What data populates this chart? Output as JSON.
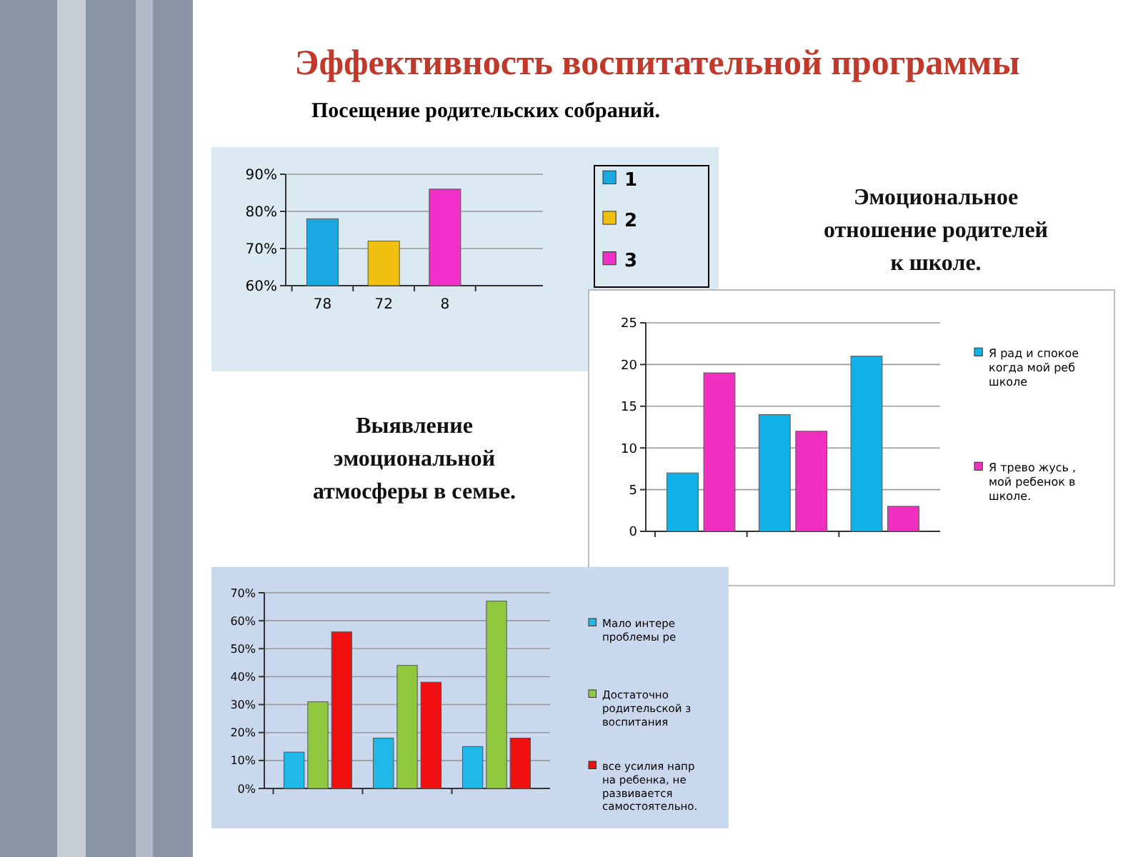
{
  "chart_data": [
    {
      "type": "bar",
      "title": "Эффективность воспитательной программы",
      "subtitle": "Посещение родительских собраний.",
      "categories": [
        "78",
        "72",
        "8",
        null
      ],
      "series": [
        {
          "name": "1",
          "color": "#1ba8e0",
          "values": [
            78,
            null,
            null,
            null
          ]
        },
        {
          "name": "2",
          "color": "#f0c010",
          "values": [
            null,
            72,
            null,
            null
          ]
        },
        {
          "name": "3",
          "color": "#f030c8",
          "values": [
            null,
            null,
            86,
            null
          ]
        }
      ],
      "ylim": [
        60,
        90
      ],
      "yticks": [
        {
          "value": 60,
          "label": "60%"
        },
        {
          "value": 70,
          "label": "70%"
        },
        {
          "value": 80,
          "label": "80%"
        },
        {
          "value": 90,
          "label": "90%"
        }
      ],
      "grid": "y",
      "legend": "right"
    },
    {
      "type": "bar",
      "title": "Эмоциональное отношение родителей к школе.",
      "categories": [
        null,
        null,
        null
      ],
      "series": [
        {
          "name": "Я рад и спокое когда мой реб школе",
          "color": "#10b0e8",
          "values": [
            7,
            14,
            21
          ]
        },
        {
          "name": "Я трево жусь , мой ребенок в школе.",
          "color": "#f030c0",
          "values": [
            19,
            12,
            3
          ]
        }
      ],
      "ylim": [
        0,
        25
      ],
      "yticks": [
        0,
        5,
        10,
        15,
        20,
        25
      ],
      "grid": "y",
      "legend": "right"
    },
    {
      "type": "bar",
      "title": "Выявление эмоциональной атмосферы в семье.",
      "categories": [
        null,
        null,
        null
      ],
      "series": [
        {
          "name": "Мало интере проблемы ре",
          "color": "#20b8e8",
          "values": [
            13,
            18,
            15
          ]
        },
        {
          "name": "Достаточно родительской з воспитания",
          "color": "#90c840",
          "values": [
            31,
            44,
            67
          ]
        },
        {
          "name": "все усилия напр на ребенка, не развивается самостоятельно.",
          "color": "#f01010",
          "values": [
            56,
            38,
            18
          ]
        }
      ],
      "ylim": [
        0,
        70
      ],
      "yticks": [
        {
          "value": 0,
          "label": "0%"
        },
        {
          "value": 10,
          "label": "10%"
        },
        {
          "value": 20,
          "label": "20%"
        },
        {
          "value": 30,
          "label": "30%"
        },
        {
          "value": 40,
          "label": "40%"
        },
        {
          "value": 50,
          "label": "50%"
        },
        {
          "value": 60,
          "label": "60%"
        },
        {
          "value": 70,
          "label": "70%"
        }
      ],
      "grid": "y",
      "legend": "right"
    }
  ]
}
